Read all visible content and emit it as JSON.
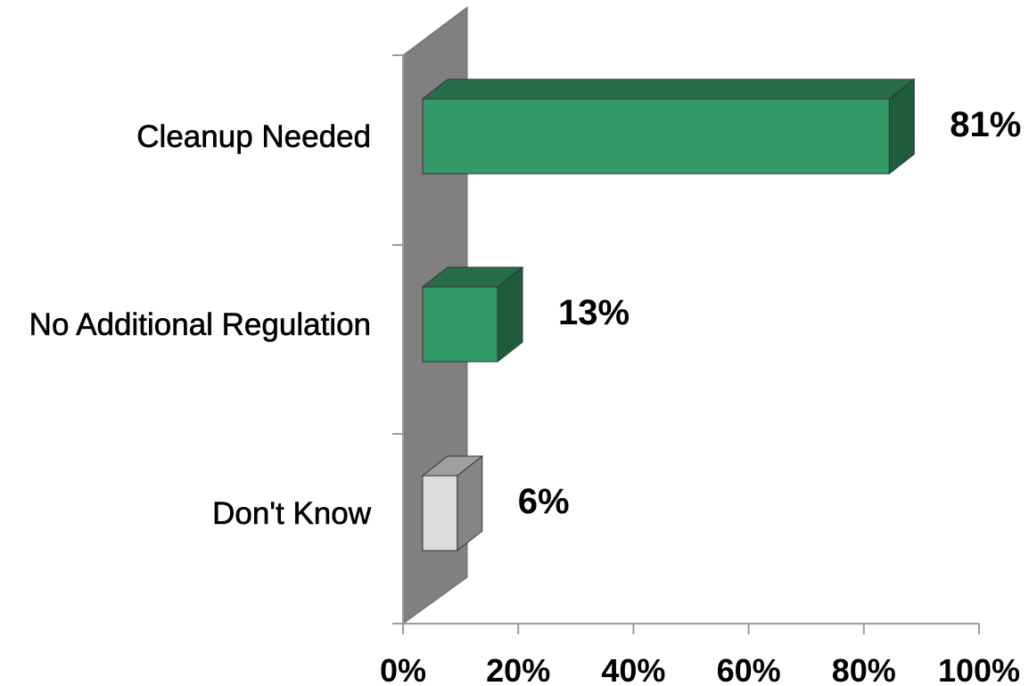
{
  "chart_data": {
    "type": "bar",
    "orientation": "horizontal",
    "three_d": true,
    "categories": [
      "Cleanup Needed",
      "No Additional Regulation",
      "Don't Know"
    ],
    "values": [
      81,
      13,
      6
    ],
    "value_labels": [
      "81%",
      "13%",
      "6%"
    ],
    "xlim": [
      0,
      100
    ],
    "x_ticks": [
      0,
      20,
      40,
      60,
      80,
      100
    ],
    "x_tick_labels": [
      "0%",
      "20%",
      "40%",
      "60%",
      "80%",
      "100%"
    ],
    "grid": false,
    "legend": "none",
    "colors": {
      "Cleanup Needed": "#339966",
      "No Additional Regulation": "#339966",
      "Don't Know": "#dddddd",
      "back_wall": "#808080",
      "axis": "#9999aa"
    }
  }
}
